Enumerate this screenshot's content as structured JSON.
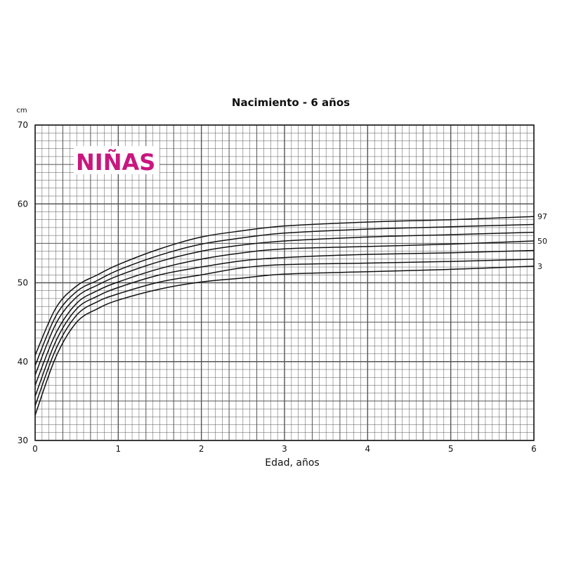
{
  "chart_data": {
    "type": "line",
    "title": "Nacimiento - 6 años",
    "ylabel": "cm",
    "xlabel": "Edad, años",
    "badge": "NIÑAS",
    "badge_color": "#c8177e",
    "line_color": "#111111",
    "grid_color": "#555555",
    "xlim": [
      0,
      6
    ],
    "ylim": [
      30,
      70
    ],
    "x_ticks": [
      "0",
      "1",
      "2",
      "3",
      "4",
      "5",
      "6"
    ],
    "y_ticks": [
      "30",
      "40",
      "50",
      "60",
      "70"
    ],
    "x": [
      0,
      0.25,
      0.5,
      0.75,
      1,
      1.5,
      2,
      2.5,
      3,
      4,
      5,
      6
    ],
    "series": [
      {
        "name": "97",
        "values": [
          40.8,
          46.8,
          49.6,
          51.0,
          52.3,
          54.3,
          55.8,
          56.6,
          57.2,
          57.7,
          58.0,
          58.4
        ]
      },
      {
        "name": "",
        "values": [
          39.5,
          45.8,
          48.9,
          50.3,
          51.6,
          53.5,
          54.9,
          55.7,
          56.3,
          56.8,
          57.1,
          57.4
        ]
      },
      {
        "name": "",
        "values": [
          38.3,
          44.8,
          48.2,
          49.7,
          50.9,
          52.7,
          54.0,
          54.8,
          55.3,
          55.8,
          56.1,
          56.4
        ]
      },
      {
        "name": "50",
        "values": [
          37.0,
          43.6,
          47.4,
          49.0,
          50.1,
          51.8,
          53.0,
          53.8,
          54.3,
          54.6,
          54.9,
          55.3
        ]
      },
      {
        "name": "",
        "values": [
          35.6,
          42.6,
          46.7,
          48.3,
          49.4,
          51.0,
          52.0,
          52.8,
          53.2,
          53.6,
          53.8,
          54.1
        ]
      },
      {
        "name": "",
        "values": [
          34.4,
          41.6,
          45.9,
          47.6,
          48.6,
          50.1,
          51.0,
          51.9,
          52.3,
          52.5,
          52.7,
          53.0
        ]
      },
      {
        "name": "3",
        "values": [
          33.2,
          40.6,
          45.0,
          46.7,
          47.8,
          49.2,
          50.1,
          50.6,
          51.1,
          51.4,
          51.7,
          52.1
        ]
      }
    ]
  }
}
